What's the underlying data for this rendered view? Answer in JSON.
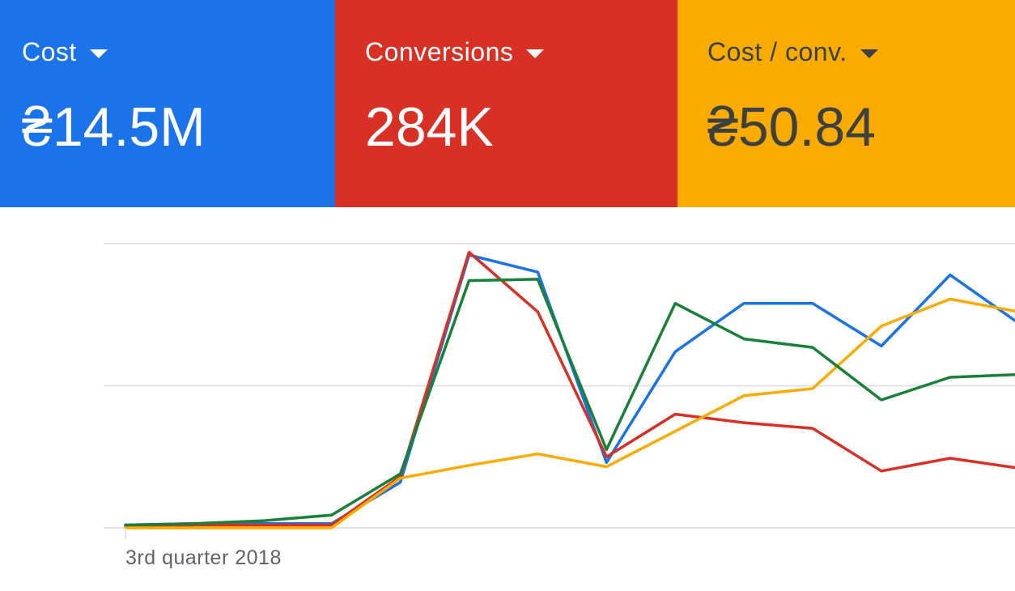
{
  "scorecards": [
    {
      "label": "Cost",
      "value": "₴14.5M",
      "color": "#1a73e8"
    },
    {
      "label": "Conversions",
      "value": "284K",
      "color": "#d93025"
    },
    {
      "label": "Cost / conv.",
      "value": "₴50.84",
      "color": "#f9ab00"
    }
  ],
  "chart_data": {
    "type": "line",
    "x_tick_labels": [
      "3rd quarter 2018"
    ],
    "x": [
      0,
      1,
      2,
      3,
      4,
      5,
      6,
      7,
      8,
      9,
      10,
      11,
      12,
      13,
      14
    ],
    "ylim": [
      0,
      100
    ],
    "grid": true,
    "colors": [
      "#1a73e8",
      "#d93025",
      "#f9ab00",
      "#188038"
    ],
    "series": [
      {
        "values": [
          1,
          1.5,
          1.5,
          1.5,
          16,
          96,
          90,
          23,
          62,
          79,
          79,
          64,
          89,
          72,
          70
        ]
      },
      {
        "values": [
          0.5,
          1,
          1,
          1,
          18,
          97,
          76,
          25,
          40,
          37,
          35,
          20,
          24.5,
          21,
          21
        ]
      },
      {
        "values": [
          0,
          0,
          0,
          0,
          17.5,
          22,
          26,
          21.5,
          34,
          46.5,
          49,
          71,
          80.5,
          76,
          75
        ]
      },
      {
        "values": [
          1,
          1.5,
          2.5,
          4.5,
          19,
          87,
          87.5,
          27.5,
          79,
          66.5,
          63.5,
          45,
          53,
          54,
          54
        ]
      }
    ]
  }
}
